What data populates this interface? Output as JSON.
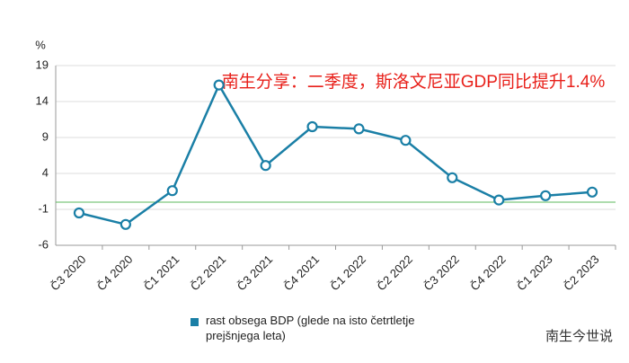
{
  "chart_data": {
    "type": "line",
    "annotation": "南生分享：二季度，斯洛文尼亚GDP同比提升1.4%",
    "y_label": "%",
    "categories": [
      "Č3 2020",
      "Č4 2020",
      "Č1 2021",
      "Č2 2021",
      "Č3 2021",
      "Č4 2021",
      "Č1 2022",
      "Č2 2022",
      "Č3 2022",
      "Č4 2022",
      "Č1 2023",
      "Č2 2023"
    ],
    "series": [
      {
        "name": "rast obsega BDP (glede na isto četrtletje prejšnjega leta)",
        "color": "#1a7fa6",
        "values": [
          -1.5,
          -3.1,
          1.6,
          16.3,
          5.1,
          10.5,
          10.2,
          8.6,
          3.4,
          0.3,
          0.9,
          1.4
        ]
      }
    ],
    "ylim": [
      -6,
      19
    ],
    "yticks": [
      -6,
      -1,
      4,
      9,
      14,
      19
    ],
    "grid": true,
    "reference_line": {
      "value": 0,
      "color": "#5cb85c"
    },
    "annotation_color": "#e8201a",
    "watermark": "南生今世说"
  }
}
